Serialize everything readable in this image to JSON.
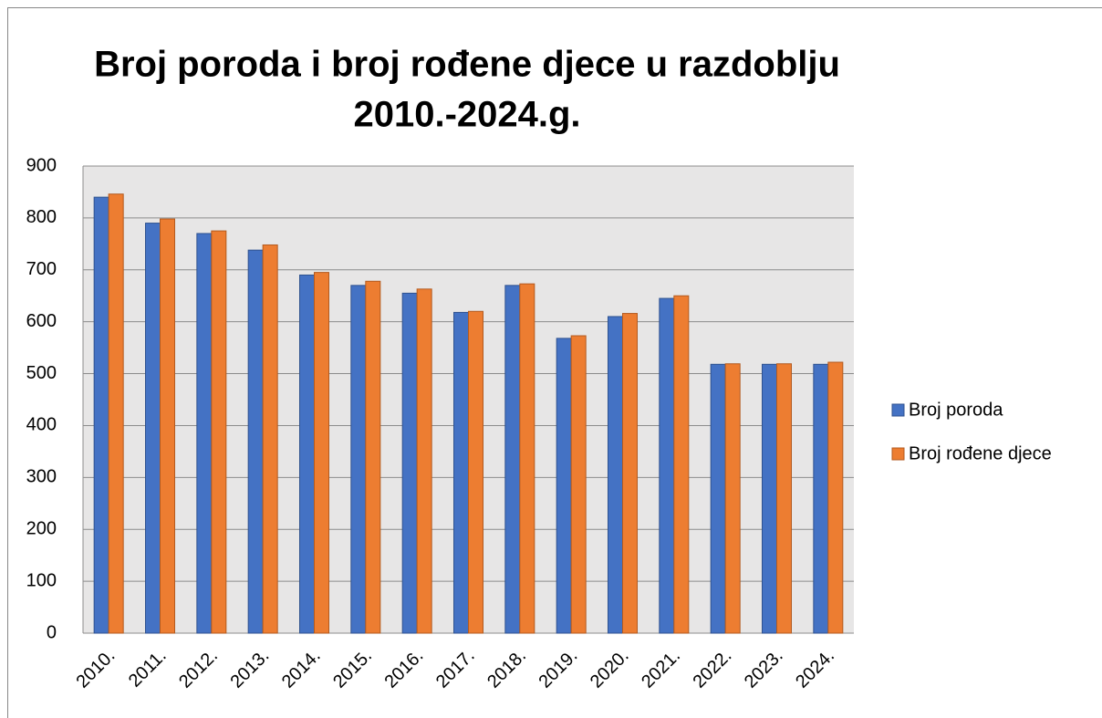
{
  "chart_data": {
    "type": "bar",
    "title": [
      "Broj poroda i broj rođene djece u razdoblju",
      "2010.-2024.g."
    ],
    "categories": [
      "2010.",
      "2011.",
      "2012.",
      "2013.",
      "2014.",
      "2015.",
      "2016.",
      "2017.",
      "2018.",
      "2019.",
      "2020.",
      "2021.",
      "2022.",
      "2023.",
      "2024."
    ],
    "series": [
      {
        "name": "Broj poroda",
        "color": "#4472c4",
        "values": [
          840,
          790,
          770,
          738,
          690,
          670,
          655,
          618,
          670,
          568,
          610,
          645,
          518,
          518,
          518
        ]
      },
      {
        "name": "Broj rođene djece",
        "color": "#ed7d31",
        "values": [
          846,
          798,
          775,
          748,
          695,
          678,
          663,
          620,
          673,
          573,
          616,
          650,
          519,
          519,
          522
        ]
      }
    ],
    "ylim": [
      0,
      900
    ],
    "yticks": [
      0,
      100,
      200,
      300,
      400,
      500,
      600,
      700,
      800,
      900
    ],
    "grid": true,
    "legend": "right"
  }
}
